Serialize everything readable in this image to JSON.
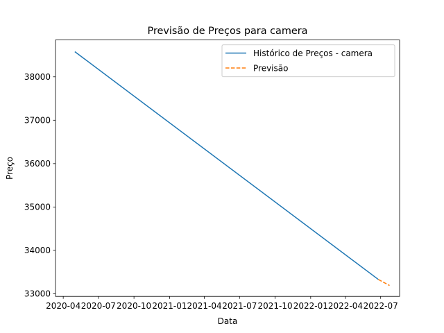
{
  "chart_data": {
    "type": "line",
    "title": "Previsão de Preços para camera",
    "xlabel": "Data",
    "ylabel": "Preço",
    "x_axis_type": "date",
    "xlim": [
      "2020-03-12",
      "2022-08-19"
    ],
    "ylim": [
      32940,
      38850
    ],
    "x_ticks": [
      {
        "date": "2020-04-01",
        "label": "2020-04"
      },
      {
        "date": "2020-07-01",
        "label": "2020-07"
      },
      {
        "date": "2020-10-01",
        "label": "2020-10"
      },
      {
        "date": "2021-01-01",
        "label": "2021-01"
      },
      {
        "date": "2021-04-01",
        "label": "2021-04"
      },
      {
        "date": "2021-07-01",
        "label": "2021-07"
      },
      {
        "date": "2021-10-01",
        "label": "2021-10"
      },
      {
        "date": "2022-01-01",
        "label": "2022-01"
      },
      {
        "date": "2022-04-01",
        "label": "2022-04"
      },
      {
        "date": "2022-07-01",
        "label": "2022-07"
      }
    ],
    "y_ticks": [
      {
        "value": 33000,
        "label": "33000"
      },
      {
        "value": 34000,
        "label": "34000"
      },
      {
        "value": 35000,
        "label": "35000"
      },
      {
        "value": 36000,
        "label": "36000"
      },
      {
        "value": 37000,
        "label": "37000"
      },
      {
        "value": 38000,
        "label": "38000"
      }
    ],
    "series": [
      {
        "name": "Histórico de Preços - camera",
        "color": "#1f77b4",
        "style": "solid",
        "points": [
          {
            "x": "2020-05-01",
            "y": 38580
          },
          {
            "x": "2022-06-25",
            "y": 33330
          }
        ]
      },
      {
        "name": "Previsão",
        "color": "#ff7f0e",
        "style": "dashed",
        "points": [
          {
            "x": "2022-06-25",
            "y": 33330
          },
          {
            "x": "2022-07-24",
            "y": 33190
          }
        ]
      }
    ],
    "legend_position": "top-right",
    "grid": false
  }
}
